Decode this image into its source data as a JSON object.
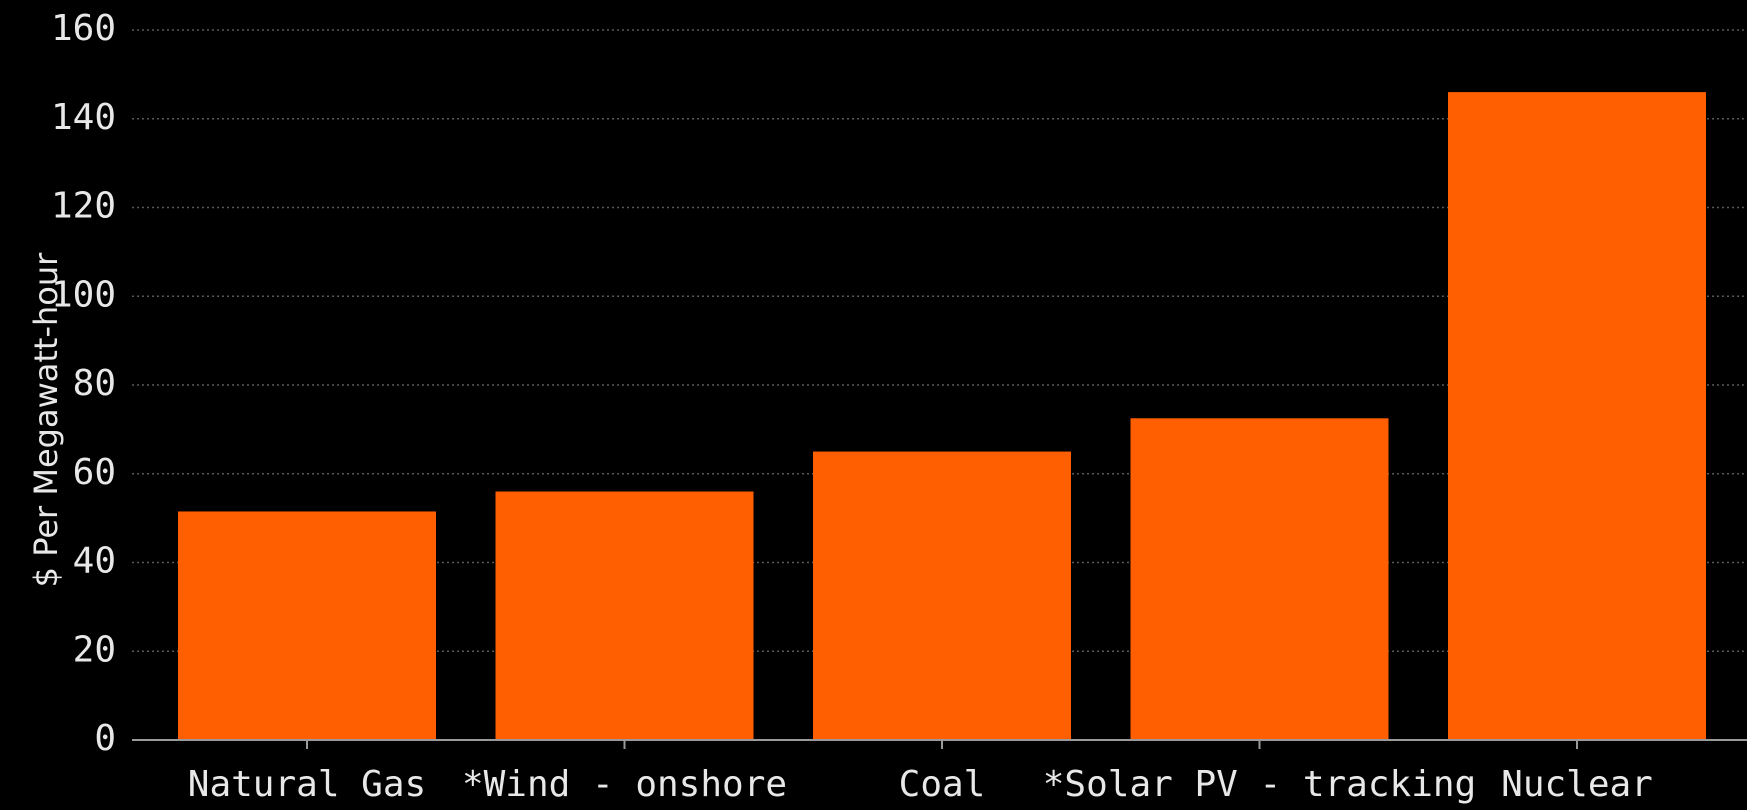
{
  "chart_data": {
    "type": "bar",
    "categories": [
      "Natural Gas",
      "*Wind - onshore",
      "Coal",
      "*Solar PV - tracking",
      "Nuclear"
    ],
    "values": [
      51.5,
      56,
      65,
      72.5,
      146
    ],
    "title": "",
    "xlabel": "",
    "ylabel": "$ Per Megawatt-hour",
    "ylim": [
      0,
      160
    ],
    "yticks": [
      0,
      20,
      40,
      60,
      80,
      100,
      120,
      140,
      160
    ],
    "grid": true,
    "colors": {
      "background": "#000000",
      "bar": "#ff5f00",
      "text": "#e8e8e8",
      "grid": "#5a5a5a",
      "axis": "#9a9a9a"
    }
  }
}
